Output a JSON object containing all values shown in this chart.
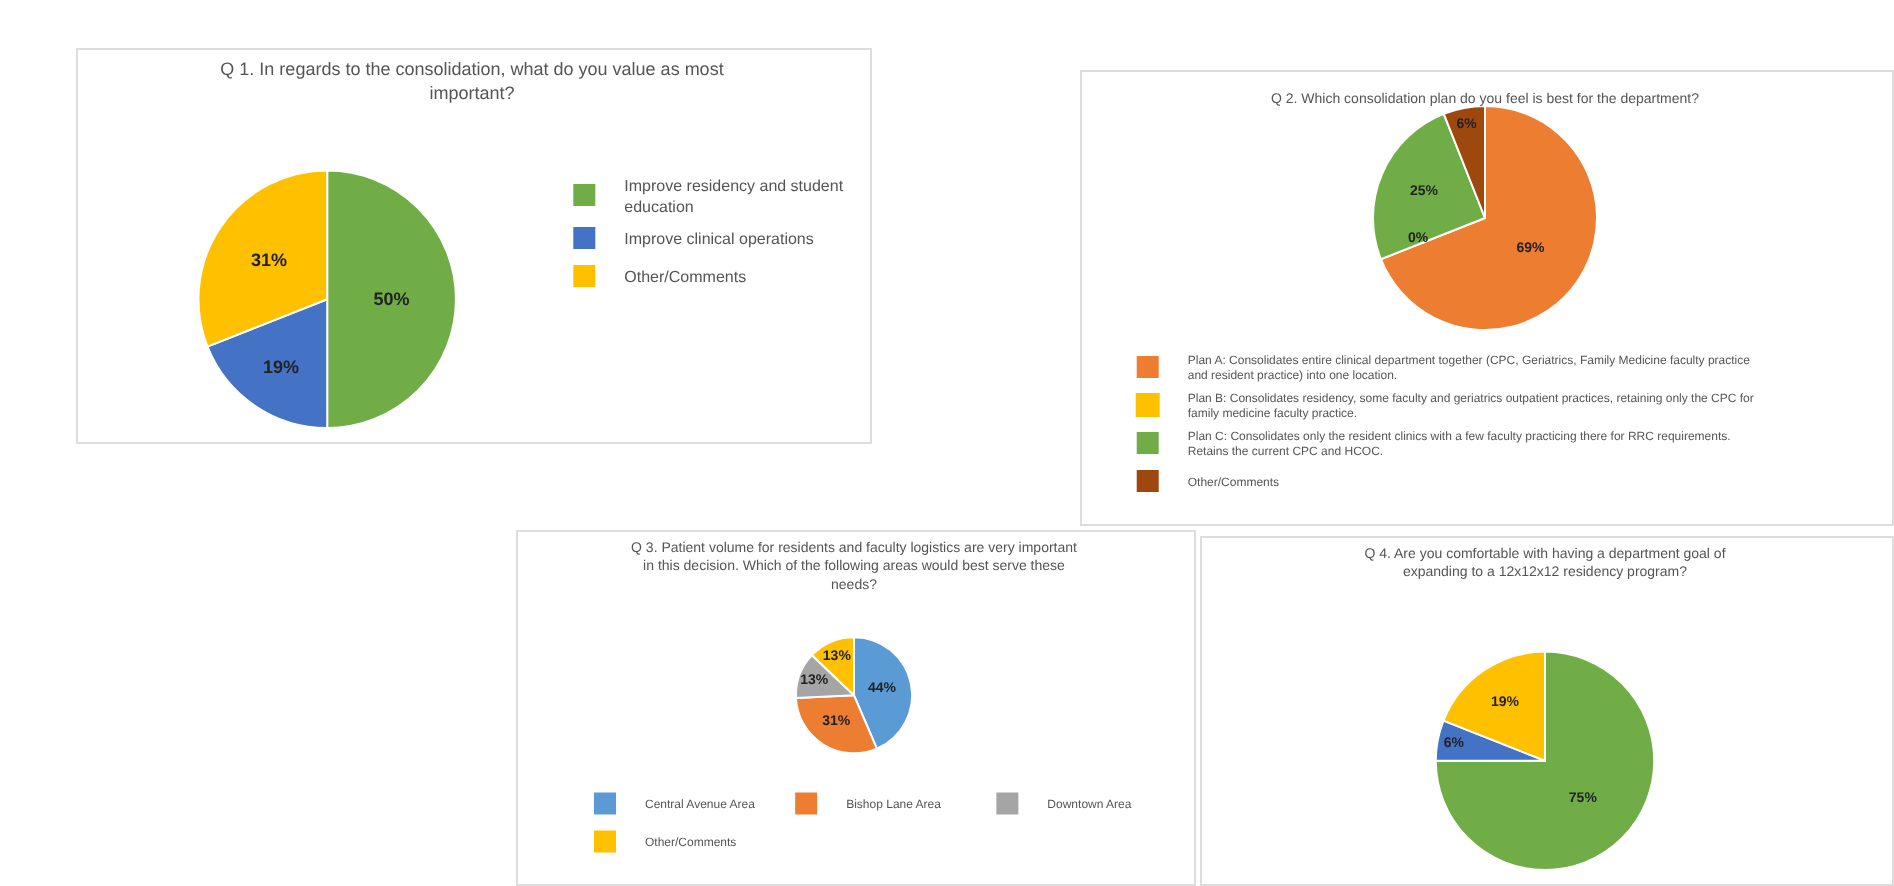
{
  "chart_data": [
    {
      "type": "pie",
      "title": "Q 1. In regards to the consolidation, what do you value as most important?",
      "categories": [
        "Improve residency and student education",
        "Improve clinical operations",
        "Other/Comments"
      ],
      "values": [
        50,
        19,
        31
      ],
      "value_labels": [
        "50%",
        "19%",
        "31%"
      ],
      "colors": [
        "#70ad47",
        "#4472c4",
        "#ffc000"
      ],
      "legend": "right"
    },
    {
      "type": "pie",
      "title": "Q 2. Which consolidation plan do you feel is best for the department?",
      "categories": [
        "Plan A: Consolidates entire clinical department together (CPC, Geriatrics, Family Medicine faculty practice and resident practice) into one location.",
        "Plan B: Consolidates residency, some faculty and geriatrics outpatient practices, retaining only the CPC for family medicine faculty practice.",
        "Plan C: Consolidates only the resident clinics with a few faculty practicing there for RRC requirements. Retains the current CPC and HCOC.",
        "Other/Comments"
      ],
      "values": [
        69,
        0,
        25,
        6
      ],
      "value_labels": [
        "69%",
        "0%",
        "25%",
        "6%"
      ],
      "colors": [
        "#ed7d31",
        "#ffc000",
        "#70ad47",
        "#9e480e"
      ],
      "legend": "bottom"
    },
    {
      "type": "pie",
      "title": "Q 3. Patient volume for residents and faculty logistics are very important in this decision. Which of the following areas would best serve these needs?",
      "categories": [
        "Central Avenue Area",
        "Bishop Lane Area",
        "Downtown Area",
        "Other/Comments"
      ],
      "values": [
        44,
        31,
        13,
        13
      ],
      "value_labels": [
        "44%",
        "31%",
        "13%",
        "13%"
      ],
      "colors": [
        "#5b9bd5",
        "#ed7d31",
        "#a5a5a5",
        "#ffc000"
      ],
      "legend": "bottom"
    },
    {
      "type": "pie",
      "title": "Q 4. Are you comfortable with having a department goal of expanding to a 12x12x12 residency program?",
      "categories": [
        null,
        null,
        null
      ],
      "values": [
        75,
        6,
        19
      ],
      "value_labels": [
        "75%",
        "6%",
        "19%"
      ],
      "colors": [
        "#70ad47",
        "#4472c4",
        "#ffc000"
      ]
    }
  ]
}
